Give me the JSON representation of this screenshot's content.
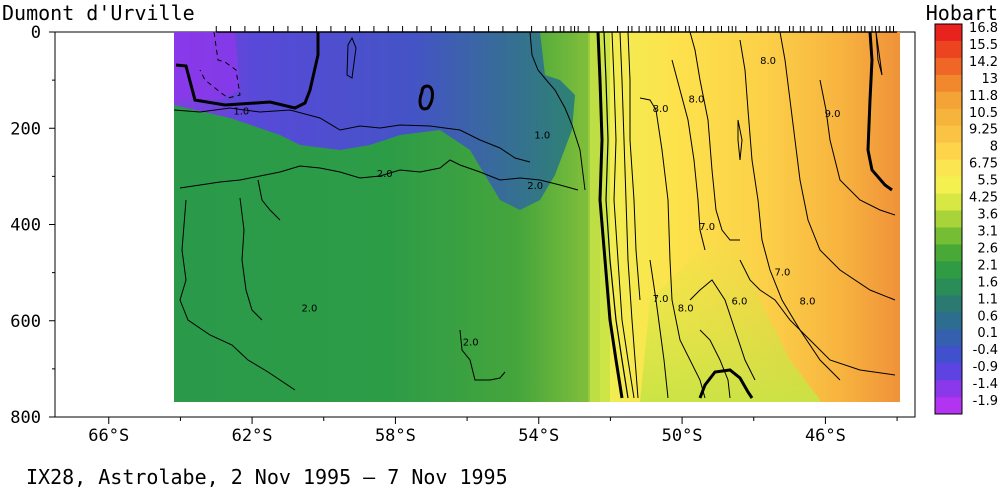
{
  "header": {
    "left_station": "Dumont d'Urville",
    "right_station": "Hobart"
  },
  "footer": {
    "caption": "IX28, Astrolabe,  2 Nov 1995 –  7 Nov 1995"
  },
  "chart_data": {
    "type": "heatmap",
    "title": "",
    "xlabel": "",
    "ylabel": "",
    "x_axis": {
      "ticks": [
        "66°S",
        "62°S",
        "58°S",
        "54°S",
        "50°S",
        "46°S"
      ],
      "tick_values": [
        -66,
        -62,
        -58,
        -54,
        -50,
        -46
      ],
      "range": [
        -67.5,
        -43.5
      ]
    },
    "y_axis": {
      "ticks": [
        "0",
        "200",
        "400",
        "600",
        "800"
      ],
      "tick_values": [
        0,
        200,
        400,
        600,
        800
      ],
      "range": [
        0,
        800
      ],
      "inverted": true
    },
    "data_extent": {
      "lat_range": [
        -63,
        -44
      ],
      "depth_range": [
        0,
        770
      ]
    },
    "colorbar": {
      "labels": [
        "16.8",
        "15.5",
        "14.2",
        "13",
        "11.8",
        "10.5",
        "9.25",
        "8",
        "6.75",
        "5.5",
        "4.25",
        "3.6",
        "3.1",
        "2.6",
        "2.1",
        "1.6",
        "1.1",
        "0.6",
        "0.1",
        "-0.4",
        "-0.9",
        "-1.4",
        "-1.9"
      ],
      "colors": [
        "#e8221c",
        "#ec4420",
        "#f06626",
        "#f2882e",
        "#f4a336",
        "#f7b43c",
        "#fbc343",
        "#fdd44a",
        "#fbe551",
        "#f3f04f",
        "#d7e844",
        "#a8d43a",
        "#74bd35",
        "#48a937",
        "#2f9c44",
        "#2a8c56",
        "#2a7a72",
        "#2c6d90",
        "#3460ae",
        "#4150cc",
        "#5d43e1",
        "#8a38ea",
        "#b233f0"
      ]
    },
    "contours": [
      {
        "label": "1.0",
        "lat": -62.3,
        "depth": 165
      },
      {
        "label": "1.0",
        "lat": -53.9,
        "depth": 215
      },
      {
        "label": "2.0",
        "lat": -58.3,
        "depth": 295
      },
      {
        "label": "2.0",
        "lat": -54.1,
        "depth": 320
      },
      {
        "label": "2.0",
        "lat": -60.4,
        "depth": 575
      },
      {
        "label": "2.0",
        "lat": -55.9,
        "depth": 645
      },
      {
        "label": "8.0",
        "lat": -50.6,
        "depth": 160
      },
      {
        "label": "8.0",
        "lat": -49.6,
        "depth": 140
      },
      {
        "label": "8.0",
        "lat": -47.6,
        "depth": 60
      },
      {
        "label": "9.0",
        "lat": -45.8,
        "depth": 170
      },
      {
        "label": "7.0",
        "lat": -49.3,
        "depth": 405
      },
      {
        "label": "7.0",
        "lat": -47.2,
        "depth": 500
      },
      {
        "label": "7.0",
        "lat": -50.6,
        "depth": 555
      },
      {
        "label": "8.0",
        "lat": -49.9,
        "depth": 575
      },
      {
        "label": "6.0",
        "lat": -48.4,
        "depth": 560
      },
      {
        "label": "8.0",
        "lat": -46.5,
        "depth": 560
      }
    ]
  }
}
